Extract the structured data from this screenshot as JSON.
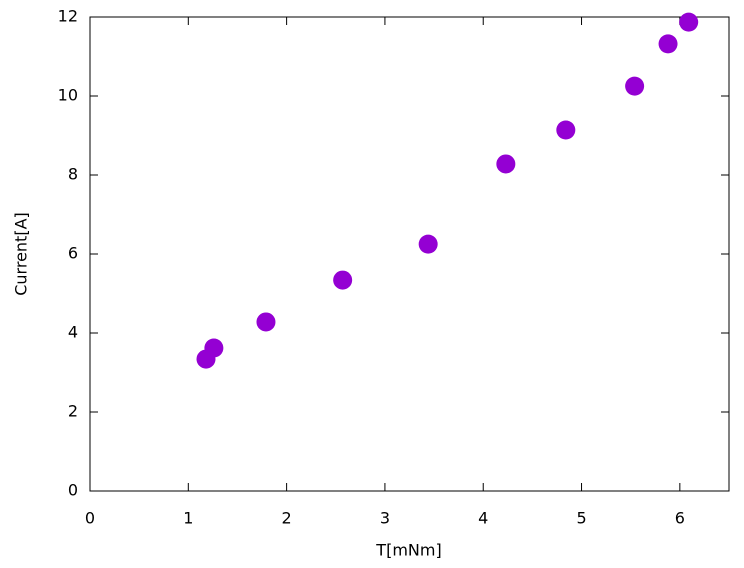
{
  "chart_data": {
    "type": "scatter",
    "x_label": "T[mNm]",
    "y_label": "Current[A]",
    "series": [
      {
        "color": "#9400d3",
        "x": [
          1.18,
          1.26,
          1.79,
          2.57,
          3.44,
          4.23,
          4.84,
          5.54,
          5.88,
          6.09
        ],
        "values": [
          3.34,
          3.62,
          4.28,
          5.34,
          6.25,
          8.28,
          9.14,
          10.25,
          11.32,
          11.87
        ]
      }
    ],
    "xlim": [
      0,
      6.5
    ],
    "xticks": [
      0,
      1,
      2,
      3,
      4,
      5,
      6
    ],
    "ylim": [
      0,
      12
    ],
    "yticks": [
      0,
      2,
      4,
      6,
      8,
      10,
      12
    ],
    "grid": false
  }
}
